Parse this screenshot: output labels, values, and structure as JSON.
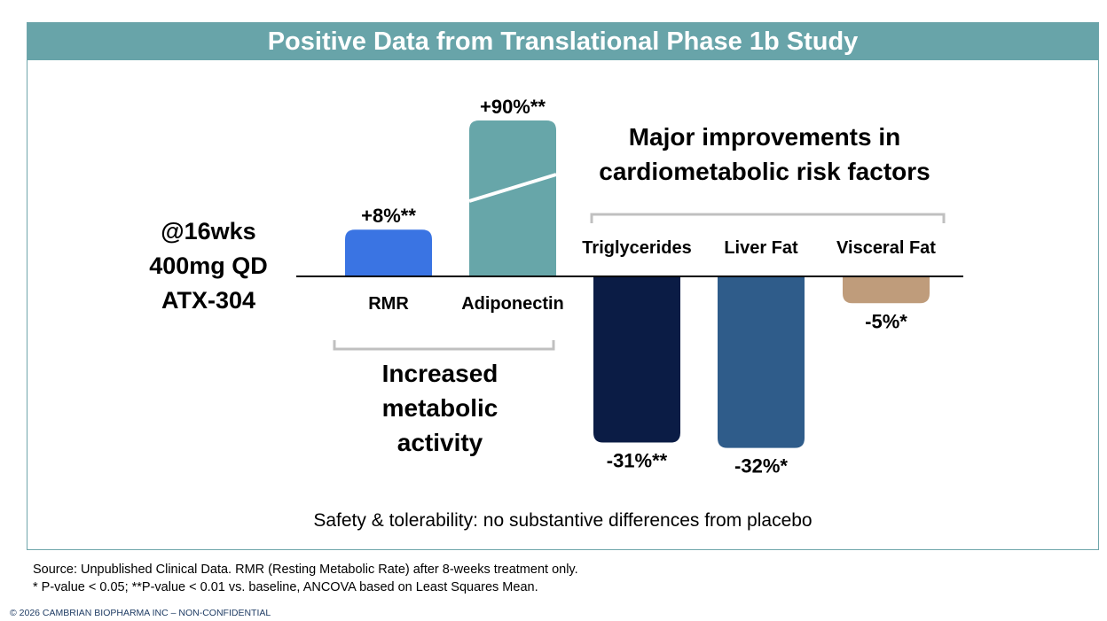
{
  "title": "Positive Data from Translational Phase 1b Study",
  "dose": {
    "line1": "@16wks",
    "line2": "400mg QD",
    "line3": "ATX-304"
  },
  "group_increase": {
    "line1": "Increased",
    "line2": "metabolic",
    "line3": "activity"
  },
  "group_improve": {
    "line1": "Major improvements in",
    "line2": "cardiometabolic risk factors"
  },
  "chart_data": {
    "type": "bar",
    "categories": [
      "RMR",
      "Adiponectin",
      "Triglycerides",
      "Liver Fat",
      "Visceral Fat"
    ],
    "values": [
      8,
      90,
      -31,
      -32,
      -5
    ],
    "value_labels": [
      "+8%**",
      "+90%**",
      "-31%**",
      "-32%*",
      "-5%*"
    ],
    "axis_break": "Adiponectin",
    "colors": [
      "#3a74e3",
      "#67a6a9",
      "#0b1c45",
      "#2f5c8a",
      "#bf9c7b"
    ],
    "title": "",
    "xlabel": "",
    "ylabel": "",
    "grid": false
  },
  "safety": "Safety & tolerability: no substantive differences from placebo",
  "footnotes": [
    "Source: Unpublished Clinical Data. RMR (Resting Metabolic Rate) after 8-weeks treatment only.",
    "* P-value < 0.05; **P-value < 0.01 vs. baseline, ANCOVA based on Least Squares Mean."
  ],
  "copyright": "© 2026 CAMBRIAN BIOPHARMA INC – NON-CONFIDENTIAL"
}
